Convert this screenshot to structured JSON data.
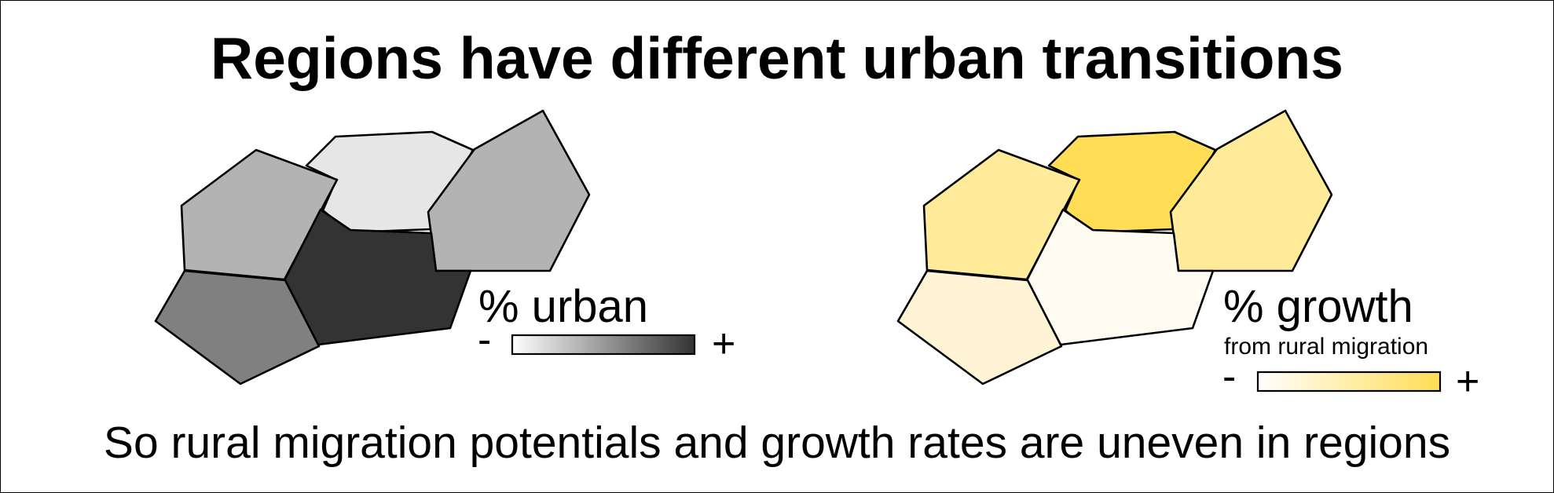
{
  "title": "Regions have different urban transitions",
  "caption": "So rural migration potentials and growth rates are uneven in regions",
  "maps": {
    "urban": {
      "legend_title": "% urban",
      "legend_min": "-",
      "legend_max": "+",
      "colors": {
        "top": "#e6e6e6",
        "left": "#b3b3b3",
        "right": "#b3b3b3",
        "center": "#333333",
        "bottom_left": "#808080"
      },
      "ramp": [
        "#ffffff",
        "#333333"
      ]
    },
    "growth": {
      "legend_title": "% growth",
      "legend_subtitle": "from rural migration",
      "legend_min": "-",
      "legend_max": "+",
      "colors": {
        "top": "#ffdd55",
        "left": "#ffeb99",
        "right": "#ffeb99",
        "center": "#fffbf0",
        "bottom_left": "#fff5d6"
      },
      "ramp": [
        "#ffffff",
        "#ffdd55"
      ]
    }
  }
}
